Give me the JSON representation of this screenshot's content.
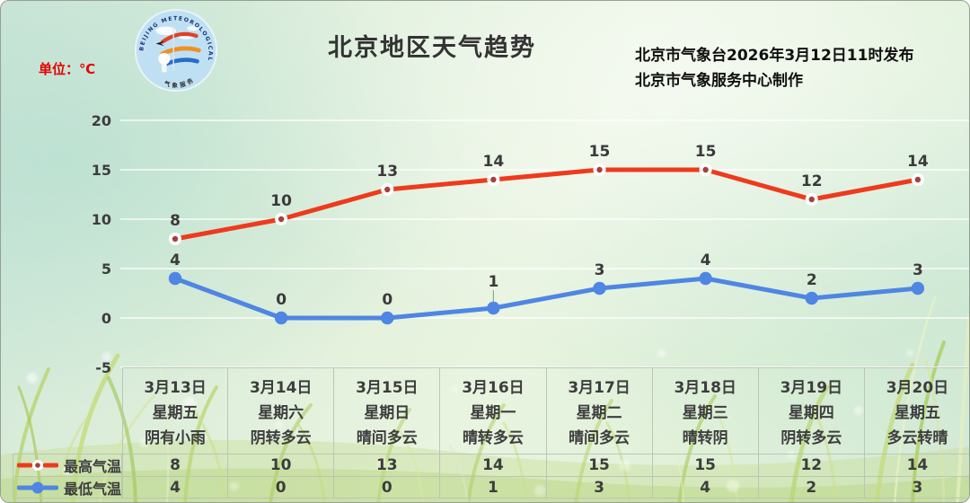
{
  "page": {
    "title": "北京地区天气趋势",
    "unit_label": "单位：℃",
    "publisher_line1": "北京市气象台2026年3月12日11时发布",
    "publisher_line2": "北京市气象服务中心制作",
    "logo": {
      "ring_text": "BEIJING METEOROLOGICAL SERVICE",
      "bottom_text": "气象服务"
    }
  },
  "colors": {
    "max_line": "#ee3a1d",
    "max_marker_center": "#a6403c",
    "min_line": "#4f86e3",
    "text_dark": "#3d3d3d",
    "unit_red": "#e60000",
    "grid": "rgba(255,255,255,0.85)",
    "table_border": "rgba(186,195,182,0.95)"
  },
  "chart_data": {
    "type": "line",
    "title": "北京地区天气趋势",
    "unit": "℃",
    "categories": [
      "3月13日",
      "3月14日",
      "3月15日",
      "3月16日",
      "3月17日",
      "3月18日",
      "3月19日",
      "3月20日"
    ],
    "weekdays": [
      "星期五",
      "星期六",
      "星期日",
      "星期一",
      "星期二",
      "星期三",
      "星期四",
      "星期五"
    ],
    "weather": [
      "阴有小雨",
      "阴转多云",
      "晴间多云",
      "晴转多云",
      "晴间多云",
      "晴转阴",
      "阴转多云",
      "多云转晴"
    ],
    "series": [
      {
        "name": "最高气温",
        "values": [
          8,
          10,
          13,
          14,
          15,
          15,
          12,
          14
        ],
        "color": "#ee3a1d"
      },
      {
        "name": "最低气温",
        "values": [
          4,
          0,
          0,
          1,
          3,
          4,
          2,
          3
        ],
        "color": "#4f86e3"
      }
    ],
    "ylim": [
      -5,
      20
    ],
    "yticks": [
      20,
      15,
      10,
      5,
      0,
      -5
    ],
    "grid": true,
    "legend_position": "bottom-left"
  }
}
